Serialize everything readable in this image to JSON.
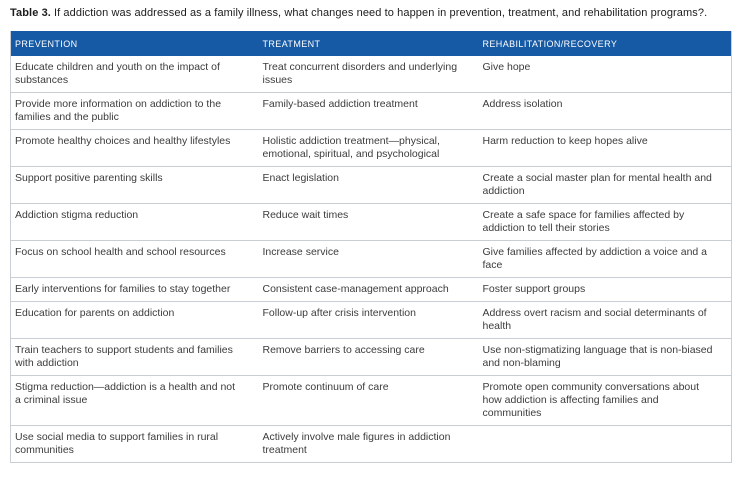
{
  "title": {
    "label": "Table 3.",
    "text": "If addiction was addressed as a family illness, what changes need to happen in prevention, treatment, and rehabilitation programs?."
  },
  "table": {
    "columns": [
      "PREVENTION",
      "TREATMENT",
      "REHABILITATION/RECOVERY"
    ],
    "rows": [
      [
        "Educate children and youth on the impact of substances",
        "Treat concurrent disorders and underlying issues",
        "Give hope"
      ],
      [
        "Provide more information on addiction to the families and the public",
        "Family-based addiction treatment",
        "Address isolation"
      ],
      [
        "Promote healthy choices and healthy lifestyles",
        "Holistic addiction treatment—physical, emotional, spiritual, and psychological",
        "Harm reduction to keep hopes alive"
      ],
      [
        "Support positive parenting skills",
        "Enact legislation",
        "Create a social master plan for mental health and addiction"
      ],
      [
        "Addiction stigma reduction",
        "Reduce wait times",
        "Create a safe space for families affected by addiction to tell their stories"
      ],
      [
        "Focus on school health and school resources",
        "Increase service",
        "Give families affected by addiction a voice and a face"
      ],
      [
        "Early interventions for families to stay together",
        "Consistent case-management approach",
        "Foster support groups"
      ],
      [
        "Education for parents on addiction",
        "Follow-up after crisis intervention",
        "Address overt racism and social determinants of health"
      ],
      [
        "Train teachers to support students and families with addiction",
        "Remove barriers to accessing care",
        "Use non-stigmatizing language that is non-biased and non-blaming"
      ],
      [
        "Stigma reduction—addiction is a health and not a criminal issue",
        "Promote continuum of care",
        "Promote open community conversations about how addiction is affecting families and communities"
      ],
      [
        "Use social media to support families in rural communities",
        "Actively involve male figures in addiction treatment",
        ""
      ]
    ]
  },
  "colors": {
    "header_bg": "#1659a5",
    "header_text": "#ffffff",
    "body_text": "#3c3c3c",
    "border": "#c9ced4"
  }
}
